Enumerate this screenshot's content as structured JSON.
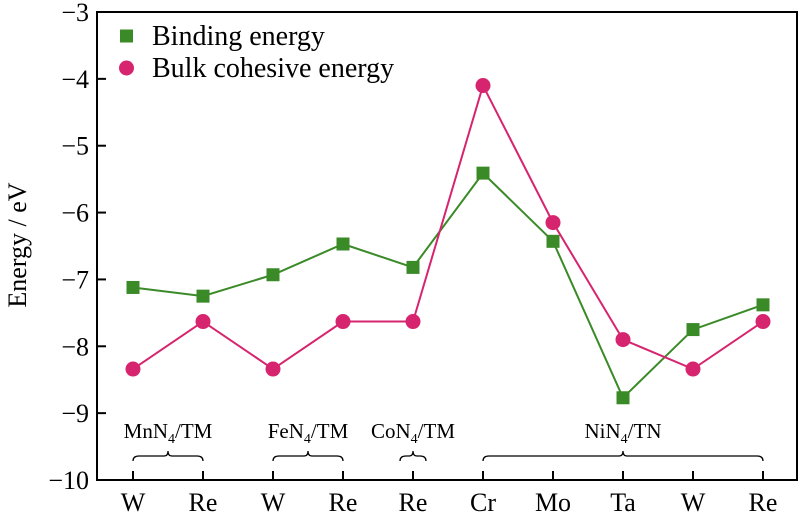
{
  "chart_data": {
    "type": "line",
    "title": "",
    "xlabel": "",
    "ylabel": "Energy / eV",
    "ylim": [
      -10,
      -3
    ],
    "yticks": [
      -10,
      -9,
      -8,
      -7,
      -6,
      -5,
      -4,
      -3
    ],
    "ytick_labels": [
      "−10",
      "−9",
      "−8",
      "−7",
      "−6",
      "−5",
      "−4",
      "−3"
    ],
    "categories": [
      "W",
      "Re",
      "W",
      "Re",
      "Re",
      "Cr",
      "Mo",
      "Ta",
      "W",
      "Re"
    ],
    "series": [
      {
        "name": "Binding energy",
        "marker": "square",
        "color": "#3a8a28",
        "values": [
          -7.12,
          -7.25,
          -6.93,
          -6.47,
          -6.82,
          -5.41,
          -6.43,
          -8.77,
          -7.75,
          -7.38
        ]
      },
      {
        "name": "Bulk cohesive energy",
        "marker": "circle",
        "color": "#d6246e",
        "values": [
          -8.34,
          -7.63,
          -8.34,
          -7.63,
          -7.63,
          -4.1,
          -6.15,
          -7.9,
          -8.34,
          -7.63
        ]
      }
    ],
    "groups": [
      {
        "main": "MnN",
        "sub": "4",
        "rest": "/TM",
        "start": 0,
        "end": 1
      },
      {
        "main": "FeN",
        "sub": "4",
        "rest": "/TM",
        "start": 2,
        "end": 3
      },
      {
        "main": "CoN",
        "sub": "4",
        "rest": "/TM",
        "start": 4,
        "end": 4
      },
      {
        "main": "NiN",
        "sub": "4",
        "rest": "/TN",
        "start": 5,
        "end": 9
      }
    ],
    "legend_position": "top-left",
    "grid": false
  }
}
